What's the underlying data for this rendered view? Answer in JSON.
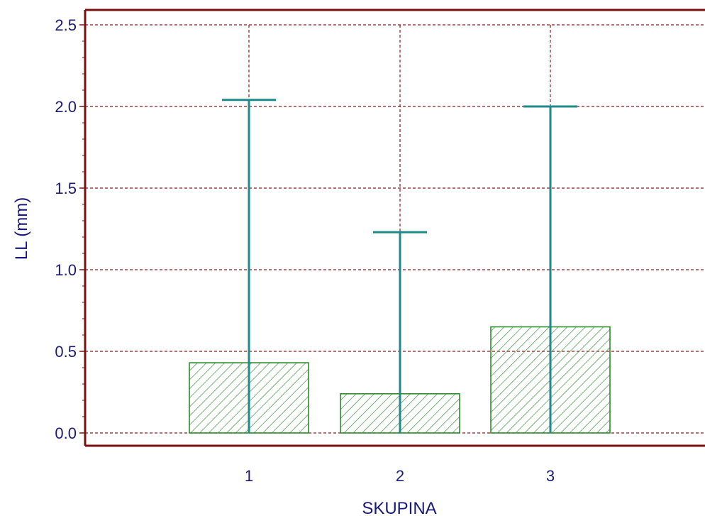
{
  "chart_data": {
    "type": "bar",
    "xlabel": "SKUPINA",
    "ylabel": "LL (mm)",
    "categories": [
      "1",
      "2",
      "3"
    ],
    "values": [
      0.43,
      0.24,
      0.65
    ],
    "error_upper": [
      2.04,
      1.23,
      2.0
    ],
    "ylim": [
      0,
      2.5
    ],
    "yticks": [
      "0.0",
      "0.5",
      "1.0",
      "1.5",
      "2.0",
      "2.5"
    ],
    "grid": true,
    "colors": {
      "frame": "#7a1010",
      "grid": "#8b1a1a",
      "bar": "#2e8b2e",
      "error": "#1f8a8a",
      "text": "#1a1a7a"
    }
  }
}
